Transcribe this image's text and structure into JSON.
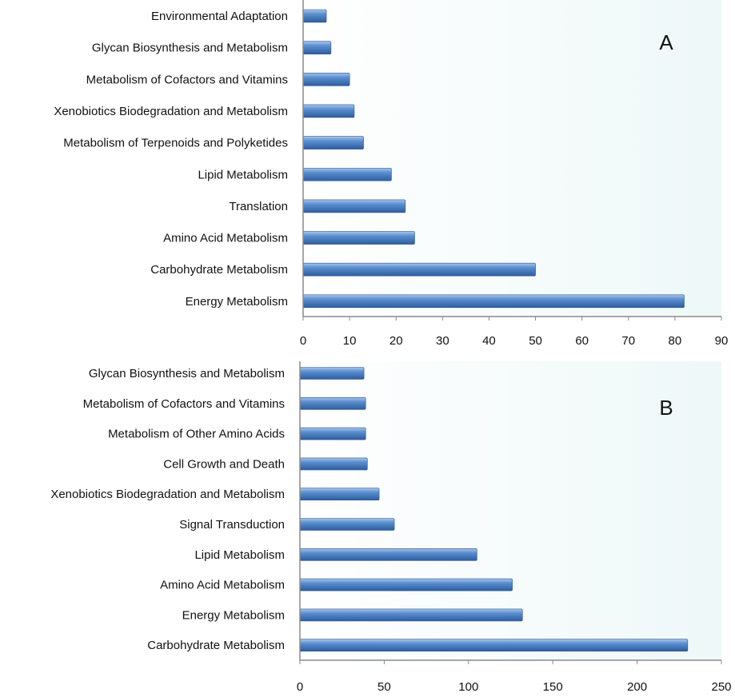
{
  "chart_data": [
    {
      "type": "bar",
      "orientation": "horizontal",
      "panel_label": "A",
      "categories": [
        "Environmental Adaptation",
        "Glycan Biosynthesis and Metabolism",
        "Metabolism of Cofactors and Vitamins",
        "Xenobiotics Biodegradation and Metabolism",
        "Metabolism of Terpenoids and Polyketides",
        "Lipid Metabolism",
        "Translation",
        "Amino Acid Metabolism",
        "Carbohydrate Metabolism",
        "Energy Metabolism"
      ],
      "values": [
        5,
        6,
        10,
        11,
        13,
        19,
        22,
        24,
        50,
        82
      ],
      "xlim": [
        0,
        90
      ],
      "xticks": [
        0,
        10,
        20,
        30,
        40,
        50,
        60,
        70,
        80,
        90
      ],
      "grid": false,
      "bar_color": "#4a7ebf",
      "background_color": "#eef8f8"
    },
    {
      "type": "bar",
      "orientation": "horizontal",
      "panel_label": "B",
      "categories": [
        "Glycan Biosynthesis and Metabolism",
        "Metabolism of Cofactors and Vitamins",
        "Metabolism of Other Amino Acids",
        "Cell Growth and Death",
        "Xenobiotics Biodegradation and Metabolism",
        "Signal Transduction",
        "Lipid Metabolism",
        "Amino Acid Metabolism",
        "Energy Metabolism",
        "Carbohydrate Metabolism"
      ],
      "values": [
        38,
        39,
        39,
        40,
        47,
        56,
        105,
        126,
        132,
        230
      ],
      "xlim": [
        0,
        250
      ],
      "xticks": [
        0,
        50,
        100,
        150,
        200,
        250
      ],
      "grid": false,
      "bar_color": "#4a7ebf",
      "background_color": "#eef8f8"
    }
  ]
}
